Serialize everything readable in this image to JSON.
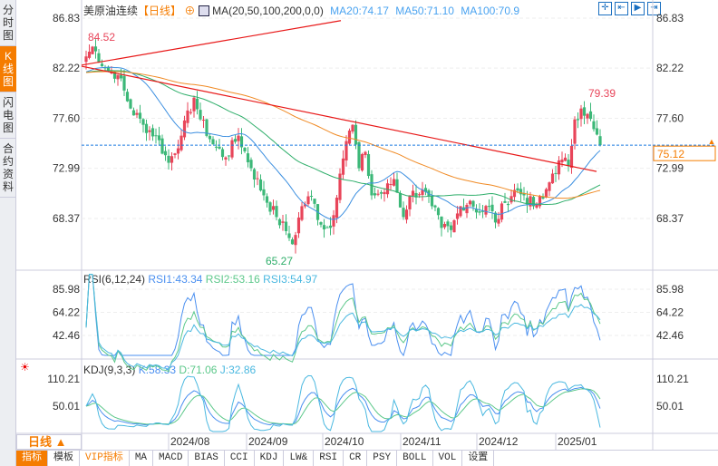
{
  "sidebar": {
    "tabs": [
      {
        "label": "分时图"
      },
      {
        "label": "K线图",
        "active": true
      },
      {
        "label": "闪电图"
      },
      {
        "label": "合约资料"
      }
    ]
  },
  "header": {
    "title": "美原油连续",
    "period": "【日线】",
    "ma_label": "MA(20,50,100,200,0,0)",
    "ma20": "MA20:74.17",
    "ma50": "MA50:71.10",
    "ma100": "MA100:70.9"
  },
  "rsi": {
    "label": "RSI(6,12,24)",
    "rsi1": "RSI1:43.34",
    "rsi2": "RSI2:53.16",
    "rsi3": "RSI3:54.97",
    "ticks": [
      "85.98",
      "64.22",
      "42.46"
    ]
  },
  "kdj": {
    "label": "KDJ(9,3,3)",
    "k": "K:58.33",
    "d": "D:71.06",
    "j": "J:32.86",
    "ticks": [
      "110.21",
      "50.01"
    ]
  },
  "price_axis": {
    "ticks": [
      "86.83",
      "82.22",
      "77.60",
      "72.99",
      "68.37"
    ],
    "current": "75.12"
  },
  "annotations": {
    "high": "84.52",
    "low": "65.27",
    "recent_high": "79.39"
  },
  "period_selector": "日线 ▲",
  "dates": [
    "2024/08",
    "2024/09",
    "2024/10",
    "2024/11",
    "2024/12",
    "2025/01"
  ],
  "bottom_tabs": [
    "指标",
    "模板",
    "VIP指标",
    "MA",
    "MACD",
    "BIAS",
    "CCI",
    "KDJ",
    "LW&",
    "RSI",
    "CR",
    "PSY",
    "BOLL",
    "VOL",
    "设置"
  ],
  "colors": {
    "up": "#e8455a",
    "down": "#3cb878",
    "ma20": "#3c8fe0",
    "ma50": "#2eae6a",
    "ma100": "#f08a24",
    "trend": "#e81818",
    "accent": "#f57c00"
  },
  "chart_data": {
    "type": "candlestick",
    "ylim": [
      65,
      87
    ],
    "current": 75.12,
    "keypoints": [
      [
        0,
        83.3
      ],
      [
        2,
        84.2
      ],
      [
        6,
        82.2
      ],
      [
        10,
        81.6
      ],
      [
        14,
        78.5
      ],
      [
        18,
        77
      ],
      [
        22,
        76
      ],
      [
        26,
        73.5
      ],
      [
        30,
        76
      ],
      [
        26,
        73.5
      ],
      [
        34,
        79.5
      ],
      [
        36,
        77.5
      ],
      [
        40,
        75.2
      ],
      [
        44,
        74
      ],
      [
        48,
        76
      ],
      [
        52,
        73
      ],
      [
        56,
        70.5
      ],
      [
        60,
        68.5
      ],
      [
        63,
        67.2
      ],
      [
        65,
        66
      ],
      [
        68,
        69.5
      ],
      [
        71,
        70.4
      ],
      [
        74,
        67.8
      ],
      [
        77,
        67.5
      ],
      [
        80,
        72.5
      ],
      [
        82,
        75.5
      ],
      [
        84,
        77
      ],
      [
        86,
        73
      ],
      [
        88,
        74.5
      ],
      [
        90,
        70.5
      ],
      [
        94,
        70.8
      ],
      [
        97,
        72
      ],
      [
        100,
        68.5
      ],
      [
        102,
        70.5
      ],
      [
        106,
        71
      ],
      [
        109,
        69.5
      ],
      [
        112,
        67.5
      ],
      [
        115,
        67.3
      ],
      [
        118,
        69.5
      ],
      [
        121,
        70
      ],
      [
        124,
        68.9
      ],
      [
        127,
        69.5
      ],
      [
        129,
        68
      ],
      [
        132,
        69.8
      ],
      [
        135,
        71
      ],
      [
        138,
        70.5
      ],
      [
        141,
        69.5
      ],
      [
        144,
        70.2
      ],
      [
        147,
        72.5
      ],
      [
        150,
        73.8
      ],
      [
        152,
        73.2
      ],
      [
        154,
        77.5
      ],
      [
        156,
        78.5
      ],
      [
        158,
        78
      ],
      [
        160,
        76.6
      ],
      [
        162,
        75.12
      ]
    ]
  }
}
